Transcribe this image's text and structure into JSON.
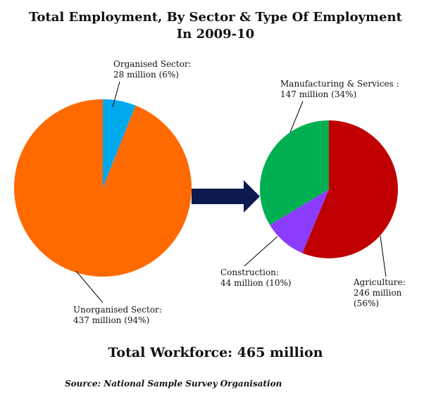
{
  "title_line1": "Total Employment, By Sector & Type Of Employment",
  "title_line2": "In 2009-10",
  "total_workforce": "Total Workforce: 465 million",
  "source": "Source: National Sample Survey Organisation",
  "chart_data": [
    {
      "type": "pie",
      "title": "",
      "slices": [
        {
          "label": "Organised Sector:",
          "value_text": "28 million (6%)",
          "value": 28,
          "percent": 6,
          "color": "#00a8ec"
        },
        {
          "label": "Unorganised Sector:",
          "value_text": "437 million (94%)",
          "value": 437,
          "percent": 94,
          "color": "#ff6a00"
        }
      ]
    },
    {
      "type": "pie",
      "title": "",
      "slices": [
        {
          "label": "Agriculture:",
          "value_text": "246 million",
          "percent_text": "(56%)",
          "value": 246,
          "percent": 56,
          "color": "#c00000"
        },
        {
          "label": "Construction:",
          "value_text": "44 million (10%)",
          "value": 44,
          "percent": 10,
          "color": "#8c3cff"
        },
        {
          "label": "Manufacturing & Services :",
          "value_text": "147 million (34%)",
          "value": 147,
          "percent": 34,
          "color": "#00b050"
        }
      ]
    }
  ],
  "arrow_color": "#0b1a4f"
}
